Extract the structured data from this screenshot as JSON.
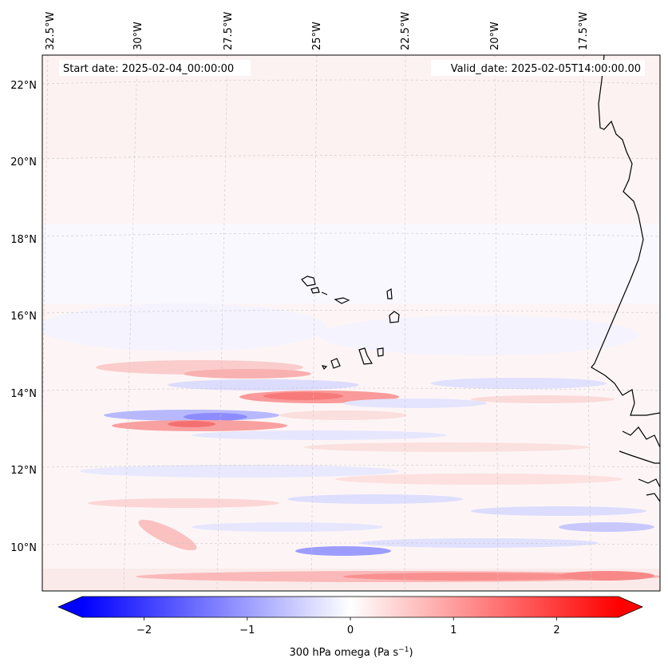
{
  "map": {
    "start_date": "Start date: 2025-02-04_00:00:00",
    "valid_date": "Valid_date: 2025-02-05T14:00:00.00",
    "lon_labels": [
      "32.5°W",
      "30°W",
      "27.5°W",
      "25°W",
      "22.5°W",
      "20°W",
      "17.5°W"
    ],
    "lat_labels": [
      "22°N",
      "20°N",
      "18°N",
      "16°N",
      "14°N",
      "12°N",
      "10°N"
    ],
    "coastline_color": "#000000",
    "gridline_color": "#c8c8c8"
  },
  "colorbar": {
    "label": "300 hPa omega (Pa s",
    "label_exp": "−1",
    "label_close": ")",
    "ticks": [
      "−2",
      "−1",
      "0",
      "1",
      "2"
    ],
    "tick_values": [
      -2,
      -1,
      0,
      1,
      2
    ],
    "vmin": -2.6,
    "vmax": 2.6,
    "cmap": "bwr"
  }
}
